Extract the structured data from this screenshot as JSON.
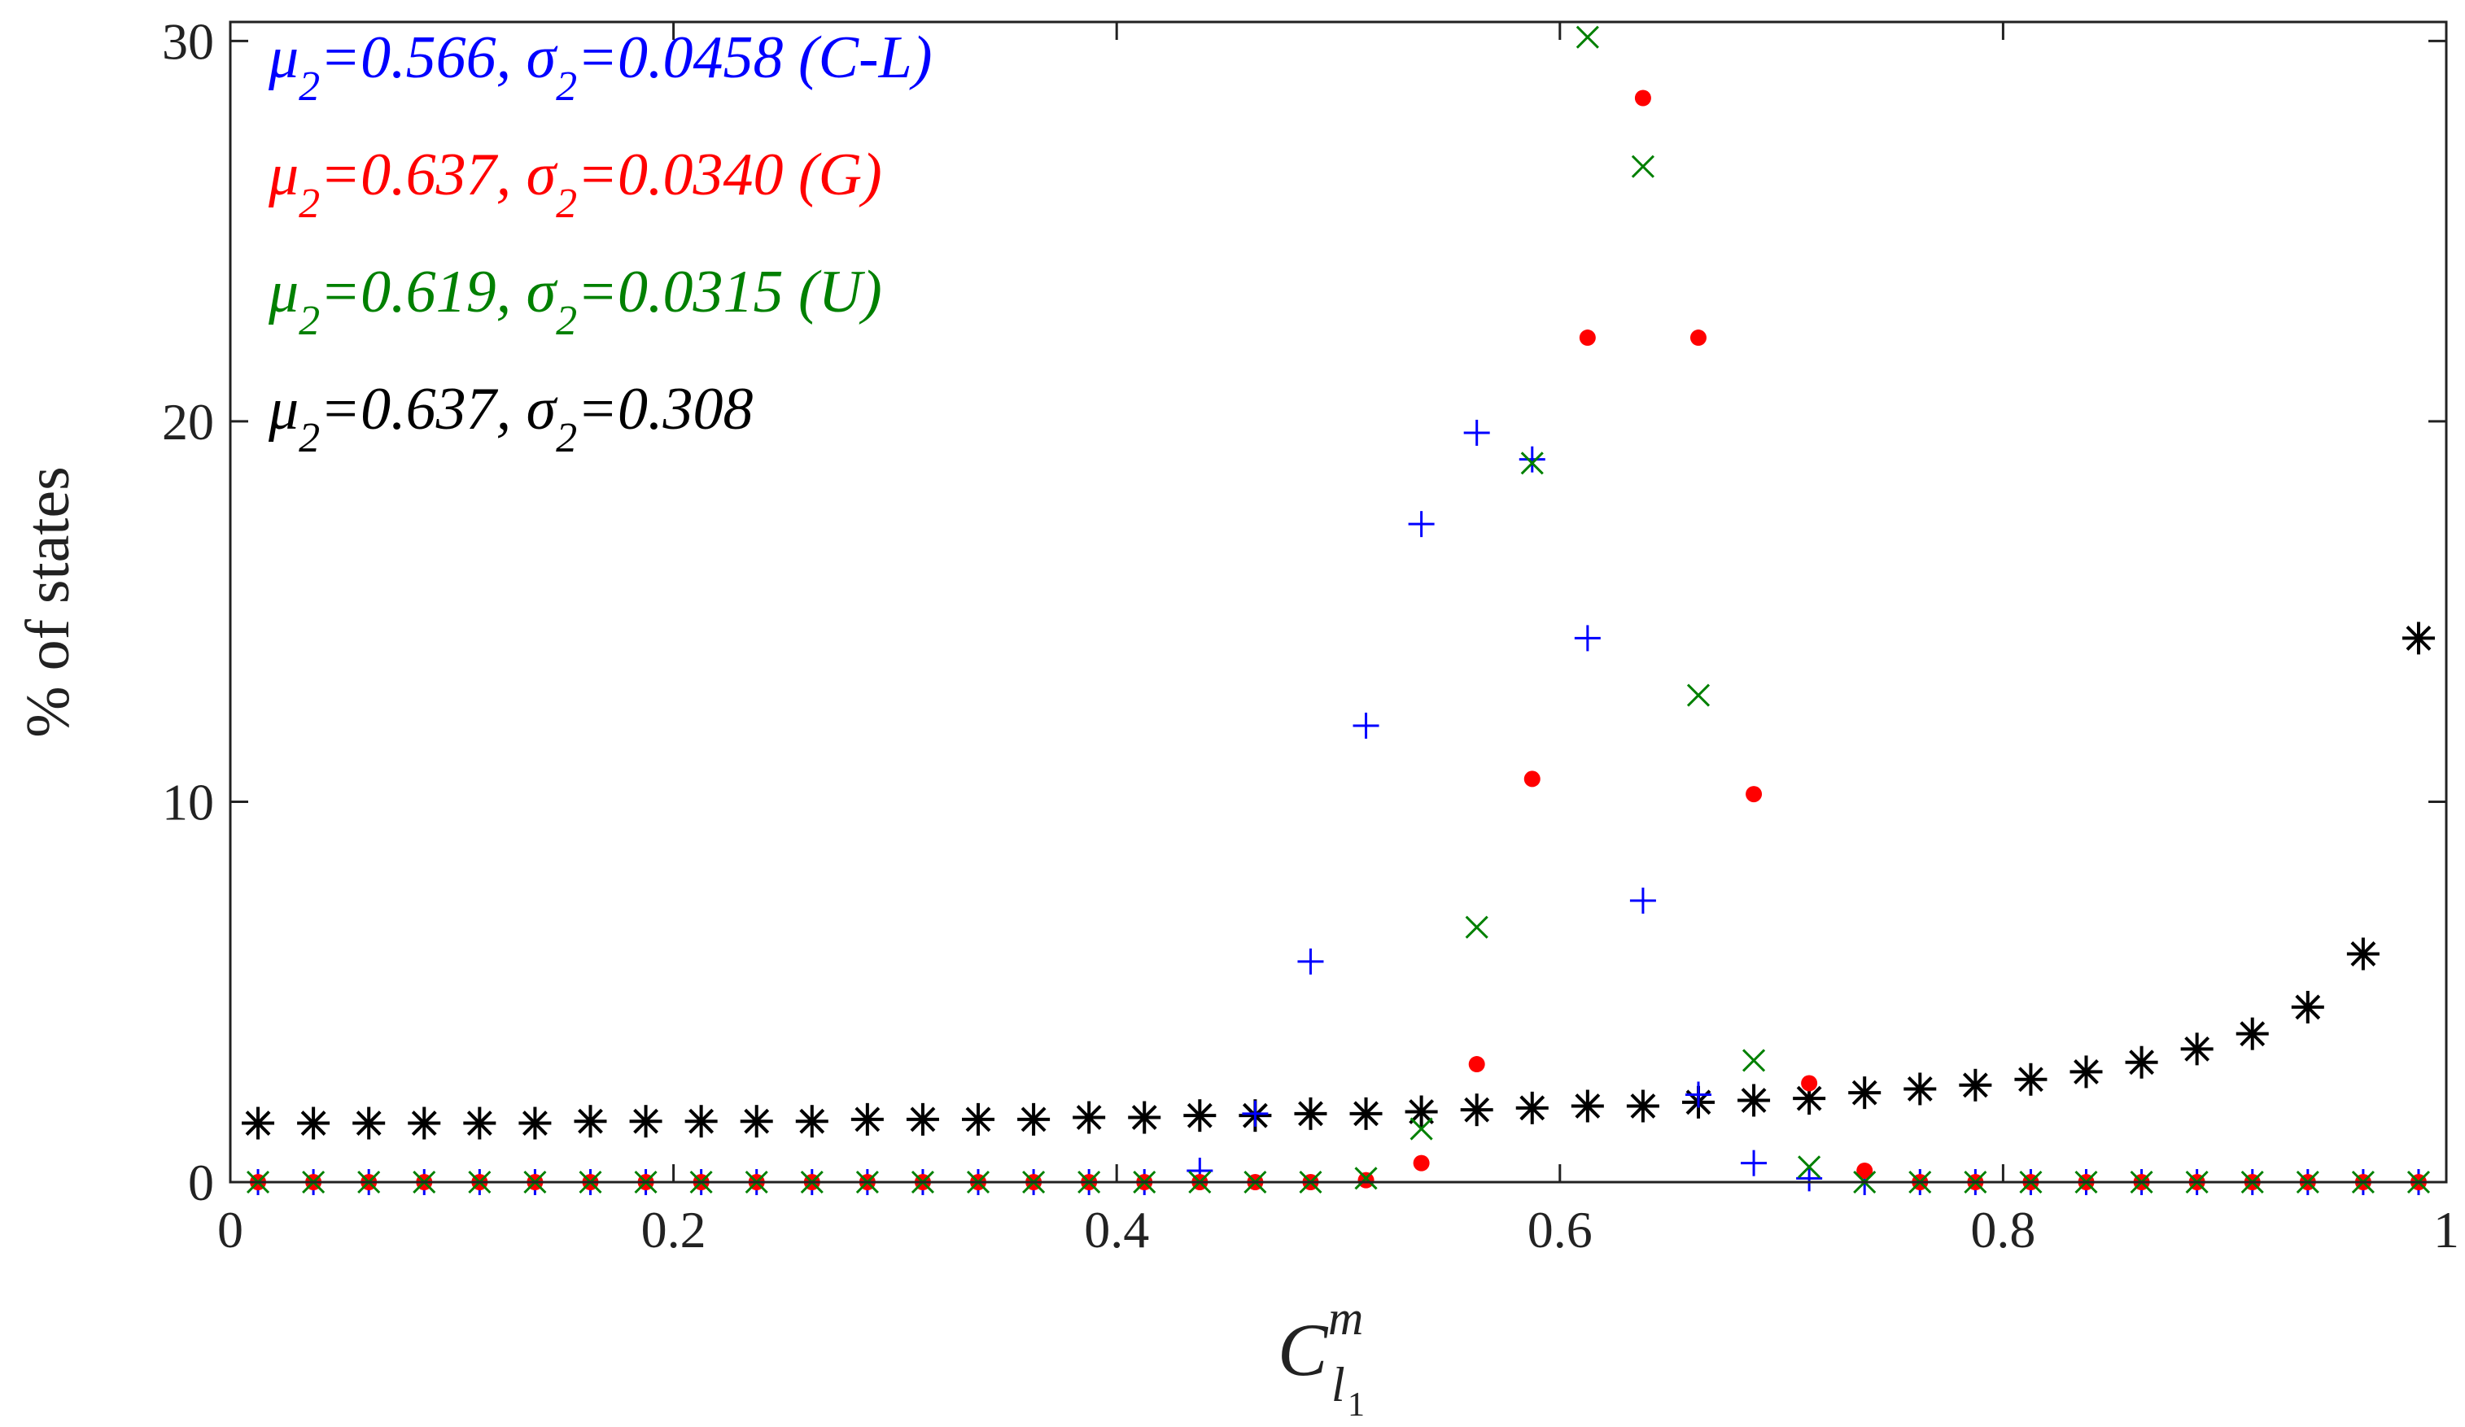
{
  "chart_data": {
    "type": "scatter",
    "title": "",
    "xlabel": "C",
    "xlabel_sup": "m",
    "xlabel_sub": "l",
    "xlabel_subsub": "1",
    "ylabel": "% of states",
    "xlim": [
      0,
      1
    ],
    "ylim": [
      0,
      30.5
    ],
    "xticks": [
      0,
      0.2,
      0.4,
      0.6,
      0.8,
      1
    ],
    "xtick_labels": [
      "0",
      "0.2",
      "0.4",
      "0.6",
      "0.8",
      "1"
    ],
    "yticks": [
      0,
      10,
      20,
      30
    ],
    "ytick_labels": [
      "0",
      "10",
      "20",
      "30"
    ],
    "grid": false,
    "legend_position": "top-left",
    "x": [
      0.0125,
      0.0375,
      0.0625,
      0.0875,
      0.1125,
      0.1375,
      0.1625,
      0.1875,
      0.2125,
      0.2375,
      0.2625,
      0.2875,
      0.3125,
      0.3375,
      0.3625,
      0.3875,
      0.4125,
      0.4375,
      0.4625,
      0.4875,
      0.5125,
      0.5375,
      0.5625,
      0.5875,
      0.6125,
      0.6375,
      0.6625,
      0.6875,
      0.7125,
      0.7375,
      0.7625,
      0.7875,
      0.8125,
      0.8375,
      0.8625,
      0.8875,
      0.9125,
      0.9375,
      0.9625,
      0.9875
    ],
    "series": [
      {
        "name": "C-L",
        "marker": "plus",
        "color": "#0000ff",
        "legend": {
          "mu_label": "μ",
          "mu_sub": "2",
          "mu_value": "=0.566, ",
          "sigma_label": "σ",
          "sigma_sub": "2",
          "sigma_value": "=0.0458 (C-L)"
        },
        "values": [
          0,
          0,
          0,
          0,
          0,
          0,
          0,
          0,
          0,
          0,
          0,
          0,
          0,
          0,
          0,
          0,
          0,
          0.3,
          1.8,
          5.8,
          12.0,
          17.3,
          19.7,
          19.0,
          14.3,
          7.4,
          2.3,
          0.5,
          0.1,
          0,
          0,
          0,
          0,
          0,
          0,
          0,
          0,
          0,
          0,
          0
        ]
      },
      {
        "name": "G",
        "marker": "dot",
        "color": "#ff0000",
        "legend": {
          "mu_label": "μ",
          "mu_sub": "2",
          "mu_value": "=0.637, ",
          "sigma_label": "σ",
          "sigma_sub": "2",
          "sigma_value": "=0.0340 (G)"
        },
        "values": [
          0,
          0,
          0,
          0,
          0,
          0,
          0,
          0,
          0,
          0,
          0,
          0,
          0,
          0,
          0,
          0,
          0,
          0,
          0,
          0,
          0.05,
          0.5,
          3.1,
          10.6,
          22.2,
          28.5,
          22.2,
          10.2,
          2.6,
          0.3,
          0,
          0,
          0,
          0,
          0,
          0,
          0,
          0,
          0,
          0
        ]
      },
      {
        "name": "U",
        "marker": "cross",
        "color": "#008000",
        "legend": {
          "mu_label": "μ",
          "mu_sub": "2",
          "mu_value": "=0.619, ",
          "sigma_label": "σ",
          "sigma_sub": "2",
          "sigma_value": "=0.0315 (U)"
        },
        "values": [
          0,
          0,
          0,
          0,
          0,
          0,
          0,
          0,
          0,
          0,
          0,
          0,
          0,
          0,
          0,
          0,
          0,
          0,
          0,
          0,
          0.1,
          1.4,
          6.7,
          18.9,
          30.1,
          26.7,
          12.8,
          3.2,
          0.4,
          0,
          0,
          0,
          0,
          0,
          0,
          0,
          0,
          0,
          0,
          0
        ]
      },
      {
        "name": "black",
        "marker": "asterisk",
        "color": "#000000",
        "legend": {
          "mu_label": "μ",
          "mu_sub": "2",
          "mu_value": "=0.637, ",
          "sigma_label": "σ",
          "sigma_sub": "2",
          "sigma_value": "=0.308"
        },
        "values": [
          1.55,
          1.55,
          1.55,
          1.55,
          1.55,
          1.55,
          1.6,
          1.6,
          1.6,
          1.6,
          1.6,
          1.65,
          1.65,
          1.65,
          1.65,
          1.7,
          1.7,
          1.75,
          1.75,
          1.8,
          1.8,
          1.85,
          1.9,
          1.95,
          2.0,
          2.0,
          2.1,
          2.15,
          2.2,
          2.35,
          2.45,
          2.55,
          2.7,
          2.9,
          3.15,
          3.5,
          3.9,
          4.6,
          6.0,
          14.3
        ]
      }
    ]
  }
}
